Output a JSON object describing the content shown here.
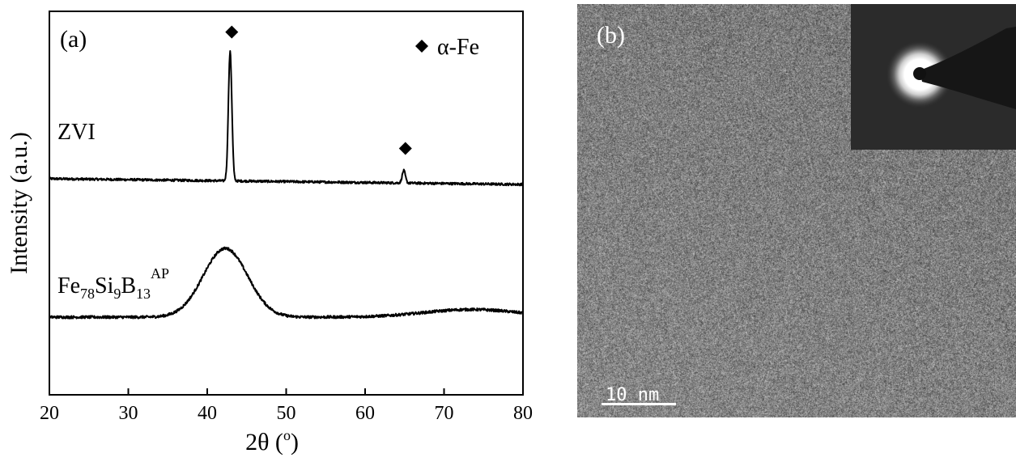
{
  "figure": {
    "panel_a_label": "(a)",
    "panel_b_label": "(b)"
  },
  "chart_data": {
    "type": "line",
    "title": "",
    "xlabel": "2θ (°)",
    "xlabel_main": "2θ (",
    "xlabel_unit": "o",
    "xlabel_close": ")",
    "ylabel": "Intensity (a.u.)",
    "xlim": [
      20,
      80
    ],
    "xticks": [
      20,
      30,
      40,
      50,
      60,
      70,
      80
    ],
    "y_ticks_shown": false,
    "legend": {
      "marker": "diamond",
      "label": "α-Fe",
      "placement": "top-right"
    },
    "series": [
      {
        "name": "ZVI",
        "label": "ZVI",
        "baseline": 1.45,
        "peaks": [
          {
            "x": 42.9,
            "height": 1.35,
            "width": 0.22,
            "marked": true
          },
          {
            "x": 64.9,
            "height": 0.13,
            "width": 0.2,
            "marked": true
          }
        ],
        "noise": 0.012
      },
      {
        "name": "Fe78Si9B13 AP",
        "label_parts": {
          "a": "Fe",
          "a_sub": "78",
          "b": "Si",
          "b_sub": "9",
          "c": "B",
          "c_sub": "13",
          "sup": "AP"
        },
        "baseline": 0.0,
        "humps": [
          {
            "x": 42.3,
            "height": 0.72,
            "width": 2.8
          },
          {
            "x": 73.5,
            "height": 0.08,
            "width": 6.0
          }
        ],
        "noise": 0.014
      }
    ],
    "annotations": [
      "α-Fe peak at ~43°",
      "α-Fe peak at ~65°"
    ]
  },
  "tem_image": {
    "scale_bar_label": "10 nm",
    "inset": "SAED pattern (diffuse halo)"
  },
  "colors": {
    "line": "#000000",
    "tem_base": "#7d7d7d",
    "inset_bg": "#2b2b2b"
  }
}
